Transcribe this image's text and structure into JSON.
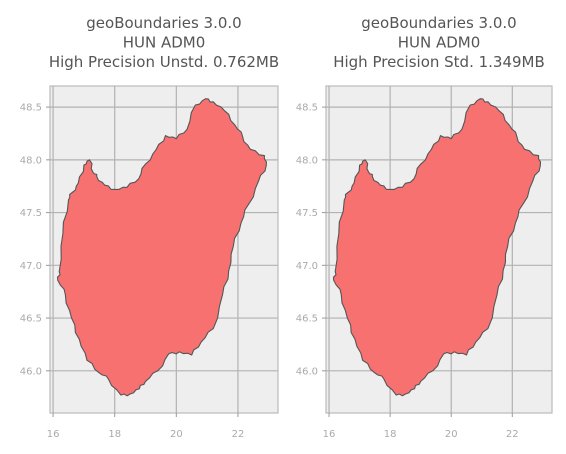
{
  "chart_data": [
    {
      "type": "area",
      "title_lines": [
        "geoBoundaries 3.0.0",
        "HUN ADM0",
        "High Precision Unstd. 0.762MB"
      ],
      "xlabel": "",
      "ylabel": "",
      "xlim": [
        15.9,
        23.3
      ],
      "ylim": [
        45.6,
        48.7
      ],
      "xticks": [
        16,
        18,
        20,
        22
      ],
      "xtick_labels": [
        "16",
        "18",
        "20",
        "22"
      ],
      "yticks": [
        46.0,
        46.5,
        47.0,
        47.5,
        48.0,
        48.5
      ],
      "ytick_labels": [
        "46.0",
        "46.5",
        "47.0",
        "47.5",
        "48.0",
        "48.5"
      ],
      "grid": true,
      "fill_color": "#f87171",
      "edge_color": "#555555",
      "outline": [
        [
          16.2,
          46.94
        ],
        [
          16.32,
          47.3
        ],
        [
          16.5,
          47.62
        ],
        [
          16.62,
          47.69
        ],
        [
          16.82,
          47.78
        ],
        [
          17.0,
          47.95
        ],
        [
          17.18,
          48.0
        ],
        [
          17.3,
          47.88
        ],
        [
          17.42,
          47.84
        ],
        [
          17.68,
          47.76
        ],
        [
          18.0,
          47.72
        ],
        [
          18.4,
          47.74
        ],
        [
          18.78,
          47.82
        ],
        [
          19.0,
          47.96
        ],
        [
          19.35,
          48.1
        ],
        [
          19.65,
          48.23
        ],
        [
          20.0,
          48.2
        ],
        [
          20.35,
          48.29
        ],
        [
          20.62,
          48.52
        ],
        [
          20.95,
          48.58
        ],
        [
          21.2,
          48.55
        ],
        [
          21.55,
          48.47
        ],
        [
          21.9,
          48.33
        ],
        [
          22.15,
          48.22
        ],
        [
          22.4,
          48.1
        ],
        [
          22.86,
          48.04
        ],
        [
          22.92,
          47.95
        ],
        [
          22.67,
          47.8
        ],
        [
          22.35,
          47.58
        ],
        [
          22.1,
          47.4
        ],
        [
          21.85,
          47.18
        ],
        [
          21.7,
          46.95
        ],
        [
          21.5,
          46.72
        ],
        [
          21.2,
          46.4
        ],
        [
          20.8,
          46.27
        ],
        [
          20.5,
          46.15
        ],
        [
          20.1,
          46.18
        ],
        [
          19.75,
          46.16
        ],
        [
          19.4,
          46.0
        ],
        [
          19.0,
          45.9
        ],
        [
          18.8,
          45.83
        ],
        [
          18.5,
          45.78
        ],
        [
          18.2,
          45.77
        ],
        [
          17.8,
          45.92
        ],
        [
          17.5,
          45.98
        ],
        [
          17.1,
          46.1
        ],
        [
          16.85,
          46.3
        ],
        [
          16.6,
          46.5
        ],
        [
          16.4,
          46.72
        ],
        [
          16.15,
          46.86
        ]
      ]
    },
    {
      "type": "area",
      "title_lines": [
        "geoBoundaries 3.0.0",
        "HUN ADM0",
        "High Precision Std. 1.349MB"
      ],
      "xlabel": "",
      "ylabel": "",
      "xlim": [
        15.9,
        23.3
      ],
      "ylim": [
        45.6,
        48.7
      ],
      "xticks": [
        16,
        18,
        20,
        22
      ],
      "xtick_labels": [
        "16",
        "18",
        "20",
        "22"
      ],
      "yticks": [
        46.0,
        46.5,
        47.0,
        47.5,
        48.0,
        48.5
      ],
      "ytick_labels": [
        "46.0",
        "46.5",
        "47.0",
        "47.5",
        "48.0",
        "48.5"
      ],
      "grid": true,
      "fill_color": "#f87171",
      "edge_color": "#555555",
      "outline": [
        [
          16.2,
          46.94
        ],
        [
          16.32,
          47.3
        ],
        [
          16.5,
          47.62
        ],
        [
          16.62,
          47.69
        ],
        [
          16.82,
          47.78
        ],
        [
          17.0,
          47.95
        ],
        [
          17.18,
          48.0
        ],
        [
          17.3,
          47.88
        ],
        [
          17.42,
          47.84
        ],
        [
          17.68,
          47.76
        ],
        [
          18.0,
          47.72
        ],
        [
          18.4,
          47.74
        ],
        [
          18.78,
          47.82
        ],
        [
          19.0,
          47.96
        ],
        [
          19.35,
          48.1
        ],
        [
          19.65,
          48.23
        ],
        [
          20.0,
          48.2
        ],
        [
          20.35,
          48.29
        ],
        [
          20.62,
          48.52
        ],
        [
          20.95,
          48.58
        ],
        [
          21.2,
          48.55
        ],
        [
          21.55,
          48.47
        ],
        [
          21.9,
          48.33
        ],
        [
          22.15,
          48.22
        ],
        [
          22.4,
          48.1
        ],
        [
          22.86,
          48.04
        ],
        [
          22.92,
          47.95
        ],
        [
          22.67,
          47.8
        ],
        [
          22.35,
          47.58
        ],
        [
          22.1,
          47.4
        ],
        [
          21.85,
          47.18
        ],
        [
          21.7,
          46.95
        ],
        [
          21.5,
          46.72
        ],
        [
          21.2,
          46.4
        ],
        [
          20.8,
          46.27
        ],
        [
          20.5,
          46.15
        ],
        [
          20.1,
          46.18
        ],
        [
          19.75,
          46.16
        ],
        [
          19.4,
          46.0
        ],
        [
          19.0,
          45.9
        ],
        [
          18.8,
          45.83
        ],
        [
          18.5,
          45.78
        ],
        [
          18.2,
          45.77
        ],
        [
          17.8,
          45.92
        ],
        [
          17.5,
          45.98
        ],
        [
          17.1,
          46.1
        ],
        [
          16.85,
          46.3
        ],
        [
          16.6,
          46.5
        ],
        [
          16.4,
          46.72
        ],
        [
          16.15,
          46.86
        ]
      ]
    }
  ]
}
